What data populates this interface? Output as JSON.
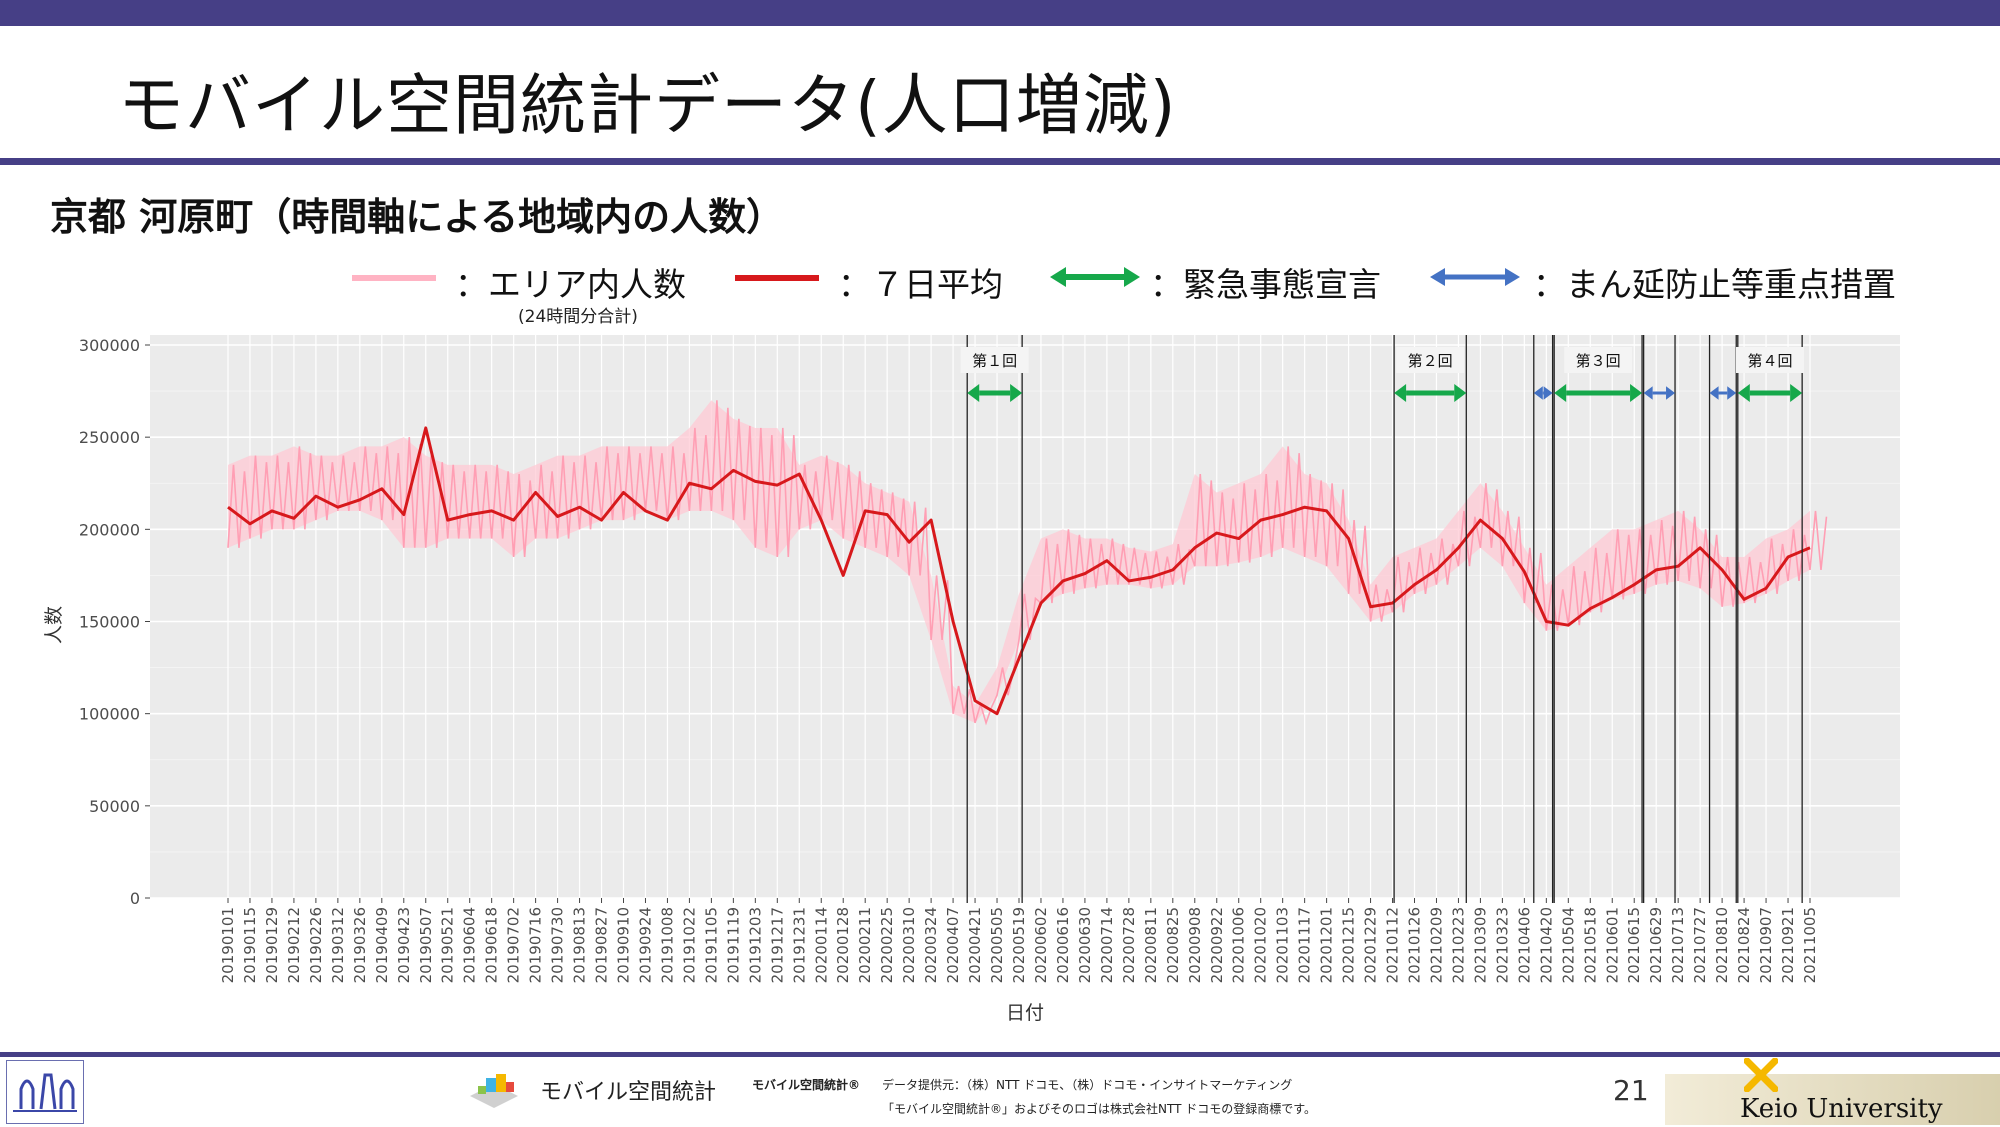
{
  "slide": {
    "title": "モバイル空間統計データ(人口増減)",
    "subtitle": "京都 河原町（時間軸による地域内の人数）",
    "page_number": "21"
  },
  "legend": {
    "area_label": "：エリア内人数",
    "area_note": "(24時間分合計)",
    "avg_label": "：７日平均",
    "emergency_label": "：緊急事態宣言",
    "priority_label": "：まん延防止等重点措置"
  },
  "footer": {
    "brand": "モバイル空間統計",
    "brand_small": "モバイル空間統計®",
    "provider": "データ提供元：（株）NTT ドコモ、（株）ドコモ・インサイトマーケティング",
    "trademark": "「モバイル空間統計®」およびそのロゴは株式会社NTT ドコモの登録商標です。",
    "university": "Keio University"
  },
  "colors": {
    "band": "#463f86",
    "area_series": "#ffb3c3",
    "avg_series": "#d7191c",
    "emergency_arrow": "#16a84b",
    "priority_arrow": "#4472c4",
    "panel_bg": "#ebebeb"
  },
  "chart_data": {
    "type": "line",
    "xlabel": "日付",
    "ylabel": "人数",
    "ylim": [
      0,
      300000
    ],
    "yticks": [
      "0",
      "50000",
      "100000",
      "150000",
      "200000",
      "250000",
      "300000"
    ],
    "yticks_values": [
      0,
      50000,
      100000,
      150000,
      200000,
      250000,
      300000
    ],
    "xticks": [
      "20190101",
      "20190115",
      "20190129",
      "20190212",
      "20190226",
      "20190312",
      "20190326",
      "20190409",
      "20190423",
      "20190507",
      "20190521",
      "20190604",
      "20190618",
      "20190702",
      "20190716",
      "20190730",
      "20190813",
      "20190827",
      "20190910",
      "20190924",
      "20191008",
      "20191022",
      "20191105",
      "20191119",
      "20191203",
      "20191217",
      "20191231",
      "20200114",
      "20200128",
      "20200211",
      "20200225",
      "20200310",
      "20200324",
      "20200407",
      "20200421",
      "20200505",
      "20200519",
      "20200602",
      "20200616",
      "20200630",
      "20200714",
      "20200728",
      "20200811",
      "20200825",
      "20200908",
      "20200922",
      "20201006",
      "20201020",
      "20201103",
      "20201117",
      "20201201",
      "20201215",
      "20201229",
      "20210112",
      "20210126",
      "20210209",
      "20210223",
      "20210309",
      "20210323",
      "20210406",
      "20210420",
      "20210504",
      "20210518",
      "20210601",
      "20210615",
      "20210629",
      "20210713",
      "20210727",
      "20210810",
      "20210824",
      "20210907",
      "20210921",
      "20211005"
    ],
    "grid": true,
    "series": [
      {
        "name": "：エリア内人数",
        "kind": "daily",
        "band_low": [
          190000,
          195000,
          200000,
          200000,
          205000,
          210000,
          210000,
          205000,
          190000,
          190000,
          195000,
          195000,
          195000,
          185000,
          195000,
          195000,
          200000,
          205000,
          205000,
          210000,
          205000,
          210000,
          210000,
          205000,
          190000,
          185000,
          200000,
          205000,
          195000,
          190000,
          185000,
          175000,
          140000,
          100000,
          95000,
          110000,
          140000,
          160000,
          165000,
          168000,
          170000,
          170000,
          168000,
          170000,
          180000,
          180000,
          182000,
          185000,
          190000,
          185000,
          180000,
          165000,
          150000,
          155000,
          165000,
          170000,
          180000,
          190000,
          180000,
          160000,
          145000,
          148000,
          155000,
          162000,
          165000,
          170000,
          172000,
          168000,
          158000,
          160000,
          165000,
          172000,
          178000
        ],
        "band_high": [
          235000,
          240000,
          240000,
          245000,
          240000,
          240000,
          245000,
          245000,
          250000,
          240000,
          235000,
          235000,
          235000,
          230000,
          235000,
          240000,
          240000,
          245000,
          245000,
          245000,
          245000,
          255000,
          270000,
          260000,
          255000,
          255000,
          235000,
          240000,
          235000,
          225000,
          220000,
          215000,
          175000,
          115000,
          105000,
          125000,
          165000,
          195000,
          200000,
          195000,
          195000,
          190000,
          188000,
          192000,
          230000,
          220000,
          225000,
          230000,
          245000,
          230000,
          225000,
          205000,
          170000,
          185000,
          190000,
          195000,
          210000,
          225000,
          210000,
          190000,
          170000,
          180000,
          190000,
          200000,
          200000,
          205000,
          210000,
          200000,
          185000,
          185000,
          195000,
          200000,
          210000
        ]
      },
      {
        "name": "：７日平均",
        "kind": "average",
        "values": [
          212000,
          203000,
          210000,
          206000,
          218000,
          212000,
          216000,
          222000,
          208000,
          255000,
          205000,
          208000,
          210000,
          205000,
          220000,
          207000,
          212000,
          205000,
          220000,
          210000,
          205000,
          225000,
          222000,
          232000,
          226000,
          224000,
          230000,
          205000,
          175000,
          210000,
          208000,
          193000,
          205000,
          150000,
          107000,
          100000,
          130000,
          160000,
          172000,
          176000,
          183000,
          172000,
          174000,
          178000,
          190000,
          198000,
          195000,
          205000,
          208000,
          212000,
          210000,
          195000,
          158000,
          160000,
          170000,
          178000,
          190000,
          205000,
          195000,
          177000,
          150000,
          148000,
          157000,
          163000,
          170000,
          178000,
          180000,
          190000,
          178000,
          162000,
          168000,
          185000,
          190000
        ]
      }
    ],
    "periods": [
      {
        "type": "emergency",
        "label": "第１回",
        "start": "20200416",
        "end": "20200521"
      },
      {
        "type": "emergency",
        "label": "第２回",
        "start": "20210113",
        "end": "20210228"
      },
      {
        "type": "priority",
        "label": "",
        "start": "20210412",
        "end": "20210424"
      },
      {
        "type": "emergency",
        "label": "第３回",
        "start": "20210425",
        "end": "20210620"
      },
      {
        "type": "priority",
        "label": "",
        "start": "20210621",
        "end": "20210711"
      },
      {
        "type": "priority",
        "label": "",
        "start": "20210802",
        "end": "20210819"
      },
      {
        "type": "emergency",
        "label": "第４回",
        "start": "20210820",
        "end": "20210930"
      }
    ]
  }
}
